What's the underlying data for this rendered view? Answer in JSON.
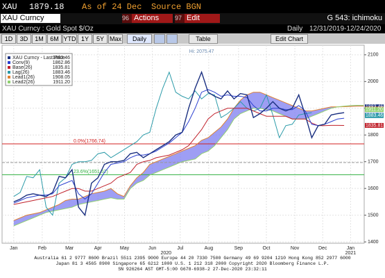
{
  "header": {
    "ticker": "XAU",
    "price": "1879.18",
    "as_of": "As of 24 Dec",
    "source": "Source BGN"
  },
  "command": {
    "security": "XAU Curncy",
    "actions_num": "96",
    "actions": "Actions",
    "edit_num": "97",
    "edit": "Edit",
    "page": "G 543: ichimoku"
  },
  "subheader": {
    "description": "XAU Curncy : Gold Spot $/Oz",
    "period": "Daily",
    "range": "12/31/2019-12/24/2020"
  },
  "toolbar": {
    "buttons": [
      "1D",
      "3D",
      "1M",
      "6M",
      "YTD",
      "1Y",
      "5Y",
      "Max"
    ],
    "frequency": "Daily",
    "table": "Table",
    "edit_chart": "Edit Chart"
  },
  "chart_data": {
    "type": "line",
    "x": [
      0,
      1,
      2,
      3,
      4,
      5,
      6,
      7,
      8,
      9,
      10,
      11,
      12,
      13,
      14,
      15,
      16,
      17,
      18,
      19,
      20,
      21,
      22,
      23,
      24,
      25,
      26,
      27,
      28,
      29,
      30,
      31,
      32,
      33,
      34,
      35,
      36,
      37,
      38,
      39,
      40,
      41,
      42,
      43,
      44,
      45,
      46,
      47,
      48,
      49,
      50,
      51,
      52,
      53,
      54
    ],
    "xlim": [
      -1.8,
      54.1
    ],
    "xticks": [
      {
        "value": 0,
        "label": "Jan"
      },
      {
        "value": 4.4,
        "label": "Feb"
      },
      {
        "value": 8.6,
        "label": "Mar"
      },
      {
        "value": 13,
        "label": "Apr"
      },
      {
        "value": 17.1,
        "label": "May"
      },
      {
        "value": 21.4,
        "label": "Jun"
      },
      {
        "value": 25.7,
        "label": "Jul"
      },
      {
        "value": 30.1,
        "label": "Aug"
      },
      {
        "value": 34.7,
        "label": "Sep"
      },
      {
        "value": 39,
        "label": "Oct"
      },
      {
        "value": 43.4,
        "label": "Nov"
      },
      {
        "value": 47.7,
        "label": "Dec"
      },
      {
        "value": 52,
        "label": "Jan"
      }
    ],
    "year_labels": [
      {
        "value": 23.5,
        "label": "2020"
      },
      {
        "value": 52,
        "label": "2021"
      }
    ],
    "ylim": [
      1395,
      2136
    ],
    "yticks": [
      1400,
      1500,
      1600,
      1700,
      1800,
      1900,
      2000,
      2100
    ],
    "grid": true,
    "series": [
      {
        "name": "XAU Curncy - Last Price",
        "legend_value": "1883.46",
        "color": "#1a2f80",
        "values": [
          1550,
          1560,
          1575,
          1580,
          1575,
          1570,
          1585,
          1645,
          1640,
          1670,
          1530,
          1500,
          1620,
          1640,
          1690,
          1700,
          1700,
          1705,
          1730,
          1735,
          1715,
          1730,
          1745,
          1760,
          1775,
          1800,
          1810,
          1900,
          1975,
          2035,
          1960,
          1945,
          1935,
          1965,
          1935,
          1955,
          1950,
          1865,
          1880,
          1900,
          1925,
          1900,
          1890,
          1900,
          1950,
          1875,
          1790,
          1835,
          1840,
          1875,
          1880,
          1883.46,
          null,
          null,
          null
        ]
      },
      {
        "name": "Conv(9)",
        "legend_value": "1862.86",
        "color": "#2a3fd0",
        "values": [
          1545,
          1555,
          1565,
          1570,
          1575,
          1575,
          1580,
          1610,
          1620,
          1630,
          1580,
          1560,
          1580,
          1620,
          1660,
          1690,
          1695,
          1700,
          1715,
          1725,
          1725,
          1730,
          1740,
          1755,
          1770,
          1790,
          1810,
          1850,
          1900,
          1960,
          1970,
          1960,
          1945,
          1950,
          1945,
          1945,
          1940,
          1910,
          1890,
          1890,
          1900,
          1900,
          1895,
          1895,
          1910,
          1890,
          1840,
          1835,
          1840,
          1850,
          1860,
          1862.86,
          null,
          null,
          null
        ]
      },
      {
        "name": "Base(26)",
        "legend_value": "1835.81",
        "color": "#c0202a",
        "values": [
          1540,
          1545,
          1550,
          1555,
          1560,
          1565,
          1570,
          1580,
          1590,
          1600,
          1600,
          1590,
          1590,
          1600,
          1610,
          1620,
          1640,
          1650,
          1660,
          1690,
          1700,
          1705,
          1715,
          1720,
          1725,
          1735,
          1745,
          1760,
          1790,
          1820,
          1860,
          1880,
          1890,
          1900,
          1900,
          1900,
          1900,
          1890,
          1880,
          1870,
          1870,
          1870,
          1870,
          1860,
          1860,
          1860,
          1845,
          1835,
          1835,
          1836,
          1836,
          1835.81,
          null,
          null,
          null
        ]
      },
      {
        "name": "Lag(26)",
        "legend_value": "1883.46",
        "color": "#2a9aa8",
        "values": [
          1570,
          1585,
          1645,
          1640,
          1670,
          1530,
          1500,
          1620,
          1640,
          1690,
          1700,
          1700,
          1705,
          1730,
          1735,
          1715,
          1730,
          1745,
          1760,
          1775,
          1800,
          1810,
          1900,
          1975,
          2035,
          1960,
          1945,
          1935,
          1965,
          1935,
          1955,
          1950,
          1865,
          1880,
          1900,
          1925,
          1900,
          1890,
          1900,
          1950,
          1875,
          1790,
          1835,
          1840,
          1875,
          1880,
          1883.46,
          null,
          null,
          null,
          null,
          null,
          null,
          null,
          null
        ]
      },
      {
        "name": "Lead1(26)",
        "legend_value": "1908.05",
        "color": "#e08030",
        "values": [
          1480,
          1490,
          1500,
          1505,
          1510,
          1520,
          1530,
          1540,
          1555,
          1560,
          1560,
          1570,
          1580,
          1585,
          1590,
          1600,
          1580,
          1570,
          1610,
          1640,
          1660,
          1690,
          1700,
          1710,
          1720,
          1730,
          1740,
          1750,
          1760,
          1780,
          1790,
          1810,
          1830,
          1860,
          1900,
          1930,
          1950,
          1960,
          1960,
          1950,
          1940,
          1930,
          1920,
          1910,
          1900,
          1890,
          1890,
          1895,
          1900,
          1905,
          1905,
          1906,
          1907,
          1908,
          1908.05
        ]
      },
      {
        "name": "Lead2(26)",
        "legend_value": "1911.20",
        "color": "#90d070",
        "values": [
          1460,
          1470,
          1480,
          1490,
          1500,
          1510,
          1515,
          1520,
          1525,
          1530,
          1540,
          1545,
          1550,
          1555,
          1560,
          1565,
          1560,
          1560,
          1600,
          1620,
          1630,
          1650,
          1660,
          1670,
          1680,
          1690,
          1700,
          1705,
          1710,
          1730,
          1740,
          1760,
          1790,
          1820,
          1860,
          1880,
          1890,
          1900,
          1900,
          1895,
          1890,
          1880,
          1870,
          1860,
          1860,
          1860,
          1870,
          1880,
          1890,
          1900,
          1905,
          1908,
          1910,
          1911,
          1911.2
        ]
      }
    ],
    "cloud_color": "#7d7df0",
    "levels": [
      {
        "label": "0.0%(1766.74)",
        "value": 1766.74,
        "color": "#d02020"
      },
      {
        "label": "23.6%(1651.52)",
        "value": 1651.52,
        "color": "#30b040"
      },
      {
        "value": 1697,
        "color": "#999999"
      }
    ],
    "annotation": {
      "text": "Hi: 2075.47",
      "value": 2075.47
    }
  },
  "footer": {
    "lines": [
      "Australia 61 2 9777 8600 Brazil 5511 2395 9000 Europe 44 20 7330 7500 Germany 49 69 9204 1210 Hong Kong 852 2977 6000",
      "Japan 81 3 4565 8900 Singapore 65 6212 1000 U.S. 1 212 318 2000 Copyright 2020 Bloomberg Finance L.P.",
      "SN 926264 AST GMT-5:00 G678-6938-2 27-Dec-2020 23:32:11"
    ]
  }
}
